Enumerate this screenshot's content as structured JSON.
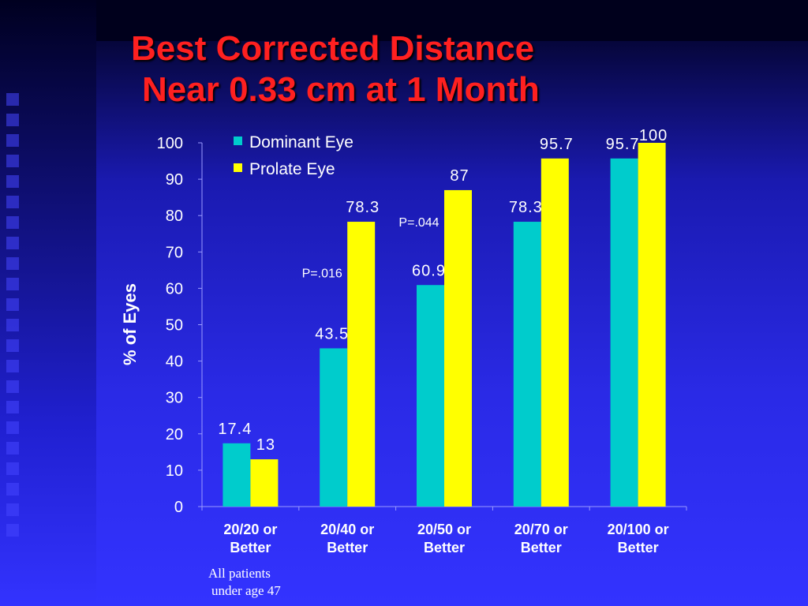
{
  "title": {
    "line1": "Best Corrected Distance",
    "line2": "Near 0.33 cm at 1 Month"
  },
  "colors": {
    "dominant": "#00cccc",
    "prolate": "#ffff00",
    "title": "#ff2020",
    "text": "#ffffff"
  },
  "chart_data": {
    "type": "bar",
    "categories": [
      "20/20 or Better",
      "20/40 or Better",
      "20/50 or Better",
      "20/70 or Better",
      "20/100 or Better"
    ],
    "category_lines": [
      [
        "20/20 or",
        "Better"
      ],
      [
        "20/40 or",
        "Better"
      ],
      [
        "20/50 or",
        "Better"
      ],
      [
        "20/70 or",
        "Better"
      ],
      [
        "20/100 or",
        "Better"
      ]
    ],
    "series": [
      {
        "name": "Dominant Eye",
        "values": [
          17.4,
          43.5,
          60.9,
          78.3,
          95.7
        ],
        "labels": [
          "17.4",
          "43.5",
          "60.9",
          "78.3",
          "95.7"
        ]
      },
      {
        "name": "Prolate Eye",
        "values": [
          13,
          78.3,
          87,
          95.7,
          100
        ],
        "labels": [
          "13",
          "78.3",
          "87",
          "95.7",
          "100"
        ]
      }
    ],
    "ylabel": "% of Eyes",
    "ylim": [
      0,
      100
    ],
    "yticks": [
      0,
      10,
      20,
      30,
      40,
      50,
      60,
      70,
      80,
      90,
      100
    ],
    "grid": false,
    "legend": "top-left",
    "annotations": [
      {
        "text": "P=.016",
        "category": 1,
        "value": 63
      },
      {
        "text": "P=.044",
        "category": 2,
        "value": 77
      }
    ]
  },
  "footnote": {
    "line1": "All patients",
    "line2": "under age 47"
  }
}
